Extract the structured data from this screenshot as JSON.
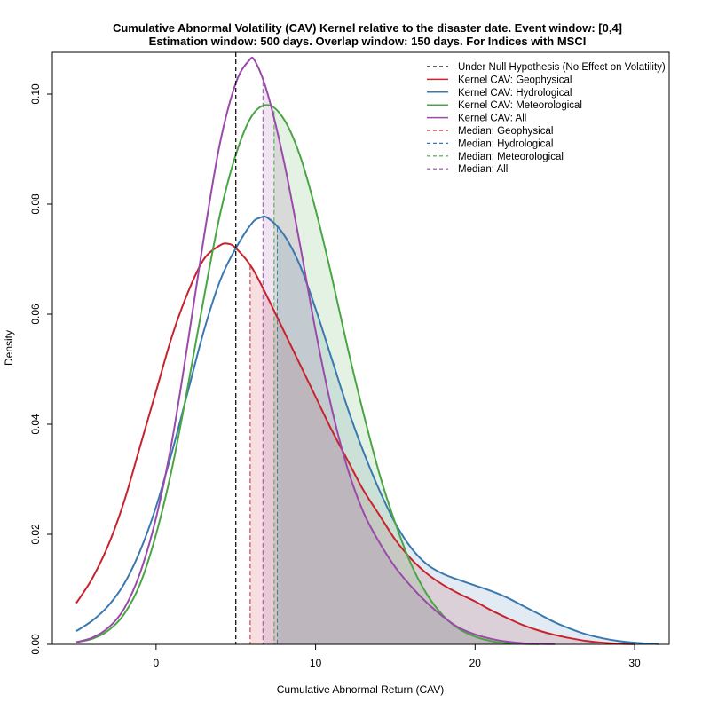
{
  "chart_data": {
    "type": "area",
    "title": "Cumulative Abnormal Volatility (CAV) Kernel relative to the disaster date. Event window: [0,4]",
    "subtitle": "Estimation window: 500 days. Overlap window: 150 days. For Indices with MSCI",
    "xlabel": "Cumulative Abnormal Return (CAV)",
    "ylabel": "Density",
    "xlim": [
      -6.5,
      32
    ],
    "ylim": [
      0,
      0.107
    ],
    "x_ticks": [
      0,
      10,
      20,
      30
    ],
    "x_tick_labels": [
      "0",
      "10",
      "20",
      "30"
    ],
    "y_ticks": [
      0.0,
      0.02,
      0.04,
      0.06,
      0.08,
      0.1
    ],
    "y_tick_labels": [
      "0.00",
      "0.02",
      "0.04",
      "0.06",
      "0.08",
      "0.10"
    ],
    "grid": false,
    "legend_position": "top-right",
    "null_hypothesis": {
      "name": "Under Null Hypothesis (No Effect on Volatility)",
      "x": 5,
      "color": "#000000"
    },
    "series": [
      {
        "name": "Kernel CAV: Geophysical",
        "color": "#c8232c",
        "fill": "rgba(200,35,44,0.15)",
        "median": 5.9,
        "median_name": "Median: Geophysical",
        "points": [
          [
            -5,
            0.0075
          ],
          [
            -4,
            0.012
          ],
          [
            -3,
            0.018
          ],
          [
            -2,
            0.026
          ],
          [
            -1,
            0.036
          ],
          [
            0,
            0.046
          ],
          [
            1,
            0.056
          ],
          [
            2,
            0.064
          ],
          [
            3,
            0.07
          ],
          [
            4,
            0.0725
          ],
          [
            4.5,
            0.0728
          ],
          [
            5,
            0.072
          ],
          [
            6,
            0.0685
          ],
          [
            7,
            0.063
          ],
          [
            8,
            0.057
          ],
          [
            9,
            0.051
          ],
          [
            10,
            0.045
          ],
          [
            11,
            0.039
          ],
          [
            12,
            0.0335
          ],
          [
            13,
            0.028
          ],
          [
            14,
            0.0235
          ],
          [
            15,
            0.019
          ],
          [
            16,
            0.0155
          ],
          [
            17,
            0.0128
          ],
          [
            18,
            0.0108
          ],
          [
            19,
            0.0092
          ],
          [
            20,
            0.0078
          ],
          [
            21,
            0.0062
          ],
          [
            22,
            0.0048
          ],
          [
            23,
            0.0035
          ],
          [
            24,
            0.0025
          ],
          [
            25,
            0.0017
          ],
          [
            26,
            0.0011
          ],
          [
            27,
            0.0006
          ],
          [
            28,
            0.0003
          ],
          [
            29,
            0.0001
          ],
          [
            30,
            3e-05
          ]
        ]
      },
      {
        "name": "Kernel CAV: Hydrological",
        "color": "#3a78b0",
        "fill": "rgba(58,120,176,0.15)",
        "median": 7.6,
        "median_name": "Median: Hydrological",
        "points": [
          [
            -5,
            0.0024
          ],
          [
            -4,
            0.0043
          ],
          [
            -3,
            0.007
          ],
          [
            -2,
            0.011
          ],
          [
            -1,
            0.017
          ],
          [
            0,
            0.025
          ],
          [
            1,
            0.035
          ],
          [
            2,
            0.046
          ],
          [
            3,
            0.057
          ],
          [
            4,
            0.066
          ],
          [
            5,
            0.072
          ],
          [
            6,
            0.0765
          ],
          [
            6.5,
            0.0775
          ],
          [
            7,
            0.0775
          ],
          [
            8,
            0.0745
          ],
          [
            9,
            0.069
          ],
          [
            10,
            0.061
          ],
          [
            11,
            0.052
          ],
          [
            12,
            0.043
          ],
          [
            13,
            0.035
          ],
          [
            14,
            0.028
          ],
          [
            15,
            0.022
          ],
          [
            16,
            0.0175
          ],
          [
            17,
            0.0145
          ],
          [
            18,
            0.0128
          ],
          [
            19,
            0.0117
          ],
          [
            20,
            0.0107
          ],
          [
            21,
            0.0097
          ],
          [
            22,
            0.0085
          ],
          [
            23,
            0.007
          ],
          [
            24,
            0.0055
          ],
          [
            25,
            0.004
          ],
          [
            26,
            0.0028
          ],
          [
            27,
            0.0018
          ],
          [
            28,
            0.0011
          ],
          [
            29,
            0.0006
          ],
          [
            30,
            0.0003
          ],
          [
            31,
            0.0001
          ],
          [
            31.5,
            5e-05
          ]
        ]
      },
      {
        "name": "Kernel CAV: Meteorological",
        "color": "#4aa545",
        "fill": "rgba(74,165,69,0.15)",
        "median": 7.4,
        "median_name": "Median: Meteorological",
        "points": [
          [
            -5,
            0.0004
          ],
          [
            -4,
            0.001
          ],
          [
            -3,
            0.0025
          ],
          [
            -2,
            0.0055
          ],
          [
            -1,
            0.011
          ],
          [
            0,
            0.02
          ],
          [
            1,
            0.032
          ],
          [
            2,
            0.047
          ],
          [
            3,
            0.063
          ],
          [
            4,
            0.078
          ],
          [
            5,
            0.089
          ],
          [
            6,
            0.096
          ],
          [
            7,
            0.098
          ],
          [
            8,
            0.0955
          ],
          [
            9,
            0.089
          ],
          [
            10,
            0.079
          ],
          [
            11,
            0.067
          ],
          [
            12,
            0.054
          ],
          [
            13,
            0.042
          ],
          [
            14,
            0.031
          ],
          [
            15,
            0.022
          ],
          [
            16,
            0.0145
          ],
          [
            17,
            0.009
          ],
          [
            18,
            0.0052
          ],
          [
            19,
            0.0028
          ],
          [
            20,
            0.0014
          ],
          [
            21,
            0.0006
          ],
          [
            22,
            0.0002
          ],
          [
            23,
            8e-05
          ],
          [
            24,
            2e-05
          ]
        ]
      },
      {
        "name": "Kernel CAV: All",
        "color": "#9a4aa8",
        "fill": "rgba(154,74,168,0.15)",
        "median": 6.7,
        "median_name": "Median: All",
        "points": [
          [
            -5,
            0.0004
          ],
          [
            -4,
            0.0012
          ],
          [
            -3,
            0.003
          ],
          [
            -2,
            0.0065
          ],
          [
            -1,
            0.013
          ],
          [
            0,
            0.023
          ],
          [
            1,
            0.037
          ],
          [
            2,
            0.055
          ],
          [
            3,
            0.074
          ],
          [
            4,
            0.091
          ],
          [
            5,
            0.102
          ],
          [
            5.8,
            0.106
          ],
          [
            6.2,
            0.106
          ],
          [
            7,
            0.1
          ],
          [
            8,
            0.088
          ],
          [
            9,
            0.073
          ],
          [
            10,
            0.057
          ],
          [
            11,
            0.043
          ],
          [
            12,
            0.032
          ],
          [
            13,
            0.024
          ],
          [
            14,
            0.0185
          ],
          [
            15,
            0.014
          ],
          [
            16,
            0.0105
          ],
          [
            17,
            0.0075
          ],
          [
            18,
            0.005
          ],
          [
            19,
            0.003
          ],
          [
            20,
            0.0018
          ],
          [
            21,
            0.001
          ],
          [
            22,
            0.0005
          ],
          [
            23,
            0.0002
          ],
          [
            24,
            8e-05
          ],
          [
            25,
            3e-05
          ]
        ]
      }
    ]
  }
}
